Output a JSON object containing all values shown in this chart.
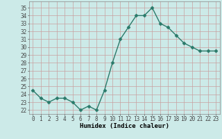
{
  "x": [
    0,
    1,
    2,
    3,
    4,
    5,
    6,
    7,
    8,
    9,
    10,
    11,
    12,
    13,
    14,
    15,
    16,
    17,
    18,
    19,
    20,
    21,
    22,
    23
  ],
  "y": [
    24.5,
    23.5,
    23.0,
    23.5,
    23.5,
    23.0,
    22.0,
    22.5,
    22.0,
    24.5,
    28.0,
    31.0,
    32.5,
    34.0,
    34.0,
    35.0,
    33.0,
    32.5,
    31.5,
    30.5,
    30.0,
    29.5,
    29.5,
    29.5
  ],
  "line_color": "#2a7a6a",
  "marker": "D",
  "marker_size": 2.5,
  "bg_color": "#cceae8",
  "grid_color": "#c8a0a0",
  "xlabel": "Humidex (Indice chaleur)",
  "xlim": [
    -0.5,
    23.5
  ],
  "ylim": [
    21.5,
    35.8
  ],
  "yticks": [
    22,
    23,
    24,
    25,
    26,
    27,
    28,
    29,
    30,
    31,
    32,
    33,
    34,
    35
  ],
  "xticks": [
    0,
    1,
    2,
    3,
    4,
    5,
    6,
    7,
    8,
    9,
    10,
    11,
    12,
    13,
    14,
    15,
    16,
    17,
    18,
    19,
    20,
    21,
    22,
    23
  ],
  "xlabel_fontsize": 6.5,
  "tick_fontsize": 5.5,
  "line_width": 1.0
}
